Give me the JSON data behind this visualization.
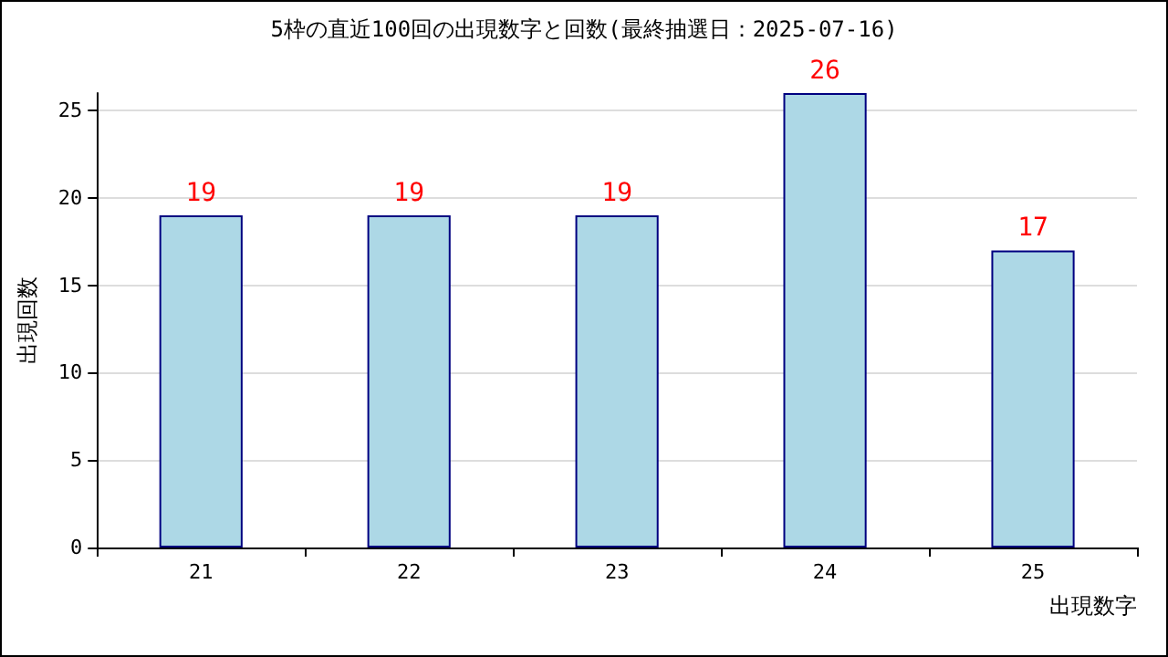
{
  "chart_data": {
    "type": "bar",
    "title": "5枠の直近100回の出現数字と回数(最終抽選日：2025-07-16)",
    "xlabel": "出現数字",
    "ylabel": "出現回数",
    "categories": [
      "21",
      "22",
      "23",
      "24",
      "25"
    ],
    "values": [
      19,
      19,
      19,
      26,
      17
    ],
    "color": "#add8e6",
    "ylim": [
      0,
      26
    ],
    "yticks": [
      0,
      5,
      10,
      15,
      20,
      25
    ],
    "grid": "y",
    "data_labels": true
  }
}
